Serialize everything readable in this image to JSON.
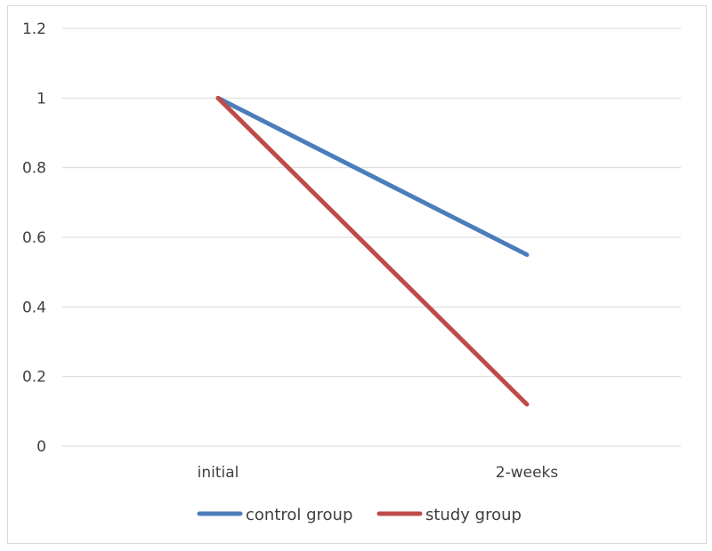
{
  "chart_data": {
    "type": "line",
    "categories": [
      "initial",
      "2-weeks"
    ],
    "series": [
      {
        "name": "control group",
        "values": [
          1,
          0.55
        ],
        "color": "#4a7ebb"
      },
      {
        "name": "study group",
        "values": [
          1,
          0.12
        ],
        "color": "#be4b48"
      }
    ],
    "yticks": [
      "0",
      "0.2",
      "0.4",
      "0.6",
      "0.8",
      "1",
      "1.2"
    ],
    "ylim": [
      0,
      1.2
    ],
    "grid": true,
    "legend": "bottom",
    "gridline_color": "#d9d9d9",
    "border_color": "#d9d9d9"
  }
}
